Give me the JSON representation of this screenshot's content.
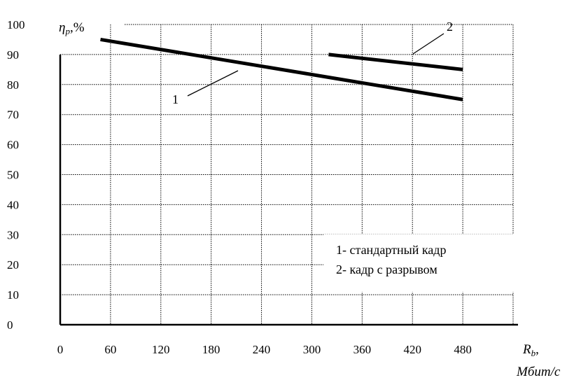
{
  "chart_data": {
    "type": "line",
    "title": "",
    "ylabel_symbol": "η",
    "ylabel_sub": "p",
    "ylabel_unit": ",%",
    "xlabel_symbol": "R",
    "xlabel_sub": "b",
    "xlabel_comma": ",",
    "xlabel_unit": "Мбит/с",
    "xlim": [
      0,
      540
    ],
    "ylim": [
      0,
      100
    ],
    "grid": true,
    "y_ticks": [
      "0",
      "10",
      "20",
      "30",
      "40",
      "50",
      "60",
      "70",
      "80",
      "90",
      "100"
    ],
    "x_ticks": [
      "0",
      "60",
      "120",
      "180",
      "240",
      "300",
      "360",
      "420",
      "480"
    ],
    "series": [
      {
        "label": "1",
        "x": [
          48,
          480
        ],
        "y": [
          95,
          75
        ]
      },
      {
        "label": "2",
        "x": [
          320,
          480
        ],
        "y": [
          90,
          85
        ]
      }
    ],
    "legend": {
      "placement": "lower-right",
      "entries": [
        "1- стандартный кадр",
        "2- кадр с разрывом"
      ]
    }
  }
}
